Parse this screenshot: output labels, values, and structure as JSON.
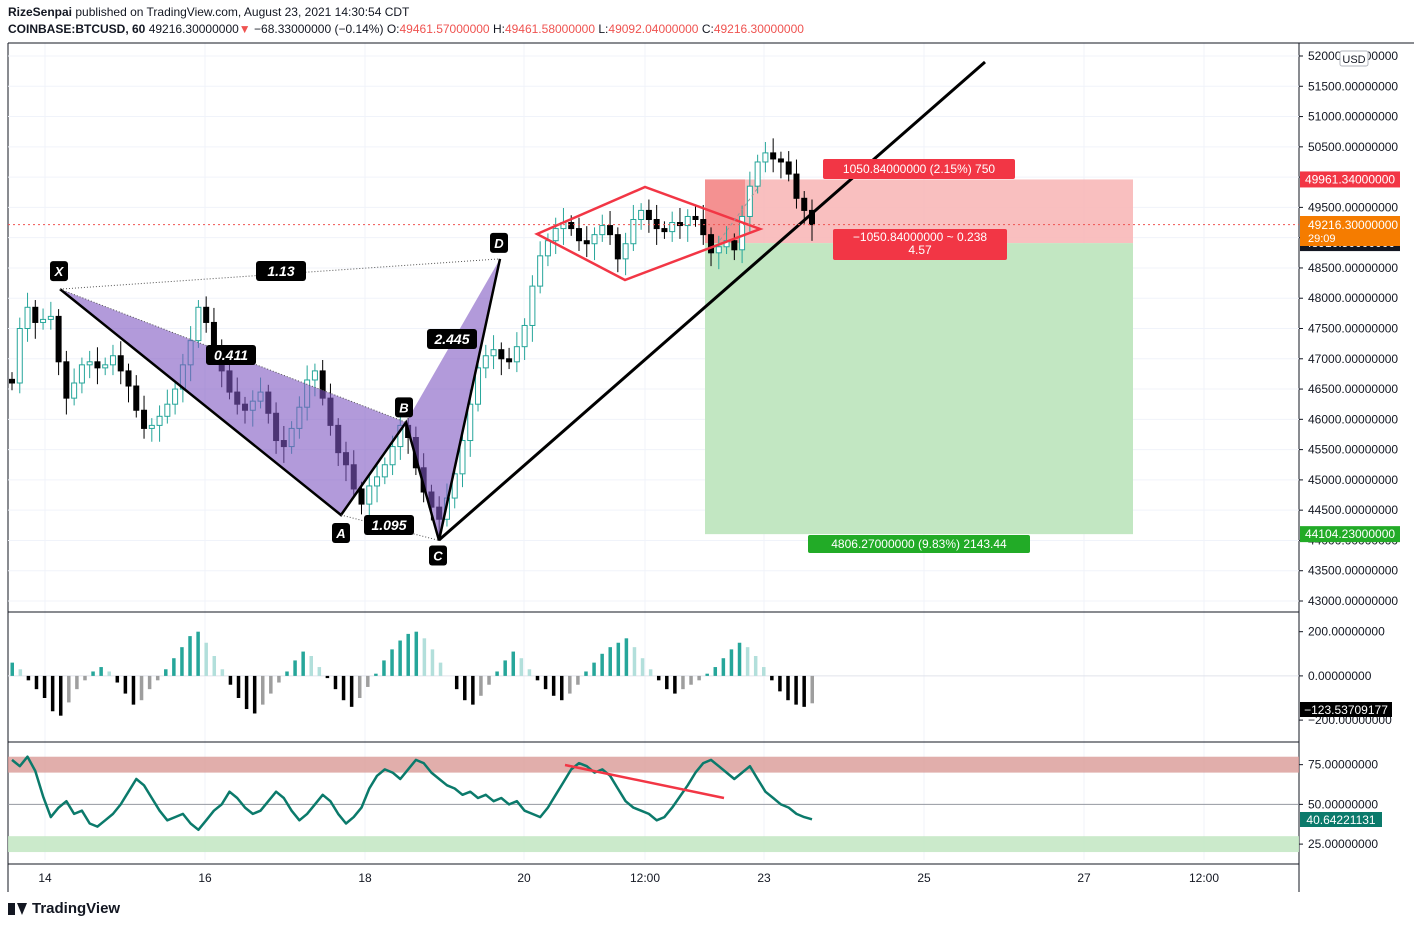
{
  "header": {
    "author": "RizeSenpai",
    "published_text": "published on TradingView.com, August 23, 2021 14:30:54 CDT",
    "symbol": "COINBASE:BTCUSD, 60",
    "last": "49216.30000000",
    "change": "−68.33000000 (−0.14%)",
    "o_label": "O:",
    "o_value": "49461.57000000",
    "h_label": "H:",
    "h_value": "49461.58000000",
    "l_label": "L:",
    "l_value": "49092.04000000",
    "c_label": "C:",
    "c_value": "49216.30000000"
  },
  "footer": {
    "brand": "TradingView"
  },
  "colors": {
    "up": "#26a69a",
    "down": "#000000",
    "harmonic": "#7e57c2",
    "diamond": "#f23645",
    "trend": "#000000",
    "rsi": "#0b7a6b",
    "stop": "#ef5350",
    "target": "#26a69a"
  },
  "chart_data": [
    {
      "type": "candlestick",
      "currency_label": "USD",
      "x_tick_labels": [
        "14",
        "16",
        "18",
        "20",
        "12:00",
        "23",
        "25",
        "27",
        "12:00"
      ],
      "y_tick_labels": [
        "43000.00000000",
        "43500.00000000",
        "44000.00000000",
        "44500.00000000",
        "45000.00000000",
        "45500.00000000",
        "46000.00000000",
        "46500.00000000",
        "47000.00000000",
        "47500.00000000",
        "48000.00000000",
        "48500.00000000",
        "49000.00000000",
        "49500.00000000",
        "50000.00000000",
        "50500.00000000",
        "51000.00000000",
        "51500.00000000",
        "52000.00000000"
      ],
      "ylim": [
        42800,
        52100
      ],
      "close_series_approx": [
        46600,
        47500,
        47850,
        47600,
        47650,
        47700,
        46950,
        46350,
        46600,
        46900,
        46950,
        46850,
        46900,
        47050,
        46800,
        46550,
        46150,
        45850,
        45900,
        46050,
        46250,
        46500,
        46900,
        47300,
        47850,
        47600,
        47200,
        46800,
        46450,
        46250,
        46150,
        46300,
        46450,
        46100,
        45650,
        45550,
        45850,
        46200,
        46650,
        46800,
        46350,
        45900,
        45450,
        45250,
        44850,
        44600,
        44900,
        45050,
        45250,
        45550,
        45900,
        45700,
        45200,
        44800,
        44550,
        44350,
        44700,
        45100,
        45650,
        46250,
        46850,
        47050,
        47150,
        47000,
        46950,
        47200,
        47550,
        48200,
        48700,
        48950,
        49150,
        49250,
        49150,
        48950,
        48900,
        49050,
        49200,
        49050,
        48650,
        48900,
        49300,
        49450,
        49300,
        49150,
        49100,
        49250,
        49200,
        49350,
        49300,
        49050,
        48750,
        48850,
        48950,
        48800,
        49350,
        49850,
        50250,
        50400,
        50300,
        50250,
        50050,
        49650,
        49450,
        49216
      ],
      "current_price_label": "49216.30000000",
      "countdown_label": "29:09",
      "price_labels": {
        "stop": "49961.34000000",
        "entry": "48910.50000000",
        "target": "44104.23000000"
      },
      "position": {
        "entry": 48910.5,
        "stop": 49961.34,
        "target": 44104.23,
        "stop_label": "1050.84000000 (2.15%) 750",
        "mid_label_line1": "−1050.84000000 ~ 0.238",
        "mid_label_line2": "4.57",
        "target_label": "4806.27000000 (9.83%) 2143.44"
      },
      "harmonic": {
        "points": [
          {
            "label": "X",
            "price": 48150
          },
          {
            "label": "A",
            "price": 44420
          },
          {
            "label": "B",
            "price": 45950
          },
          {
            "label": "C",
            "price": 44000
          },
          {
            "label": "D",
            "price": 48650
          }
        ],
        "ratios": [
          "1.13",
          "0.411",
          "2.445",
          "1.095"
        ]
      }
    },
    {
      "type": "bar",
      "name": "histogram",
      "y_tick_labels": [
        "200.00000000",
        "0.00000000",
        "−200.00000000"
      ],
      "ylim": [
        -290,
        280
      ],
      "last_value_label": "−123.53709177",
      "values": [
        60,
        30,
        -20,
        -60,
        -100,
        -160,
        -180,
        -120,
        -60,
        -20,
        20,
        40,
        20,
        -30,
        -80,
        -130,
        -110,
        -60,
        -20,
        30,
        80,
        130,
        180,
        200,
        150,
        90,
        30,
        -40,
        -100,
        -150,
        -170,
        -130,
        -80,
        -30,
        20,
        70,
        110,
        90,
        40,
        -10,
        -60,
        -110,
        -140,
        -100,
        -50,
        10,
        70,
        120,
        160,
        190,
        200,
        170,
        120,
        60,
        0,
        -60,
        -110,
        -130,
        -90,
        -40,
        20,
        70,
        110,
        80,
        30,
        -20,
        -60,
        -90,
        -110,
        -80,
        -40,
        20,
        60,
        100,
        130,
        150,
        170,
        130,
        80,
        30,
        -20,
        -60,
        -80,
        -60,
        -40,
        -20,
        10,
        40,
        80,
        120,
        150,
        130,
        90,
        40,
        -20,
        -70,
        -110,
        -130,
        -140,
        -124
      ]
    },
    {
      "type": "line",
      "name": "oscillator",
      "y_tick_labels": [
        "75.00000000",
        "50.00000000",
        "25.00000000"
      ],
      "ylim": [
        15,
        88
      ],
      "overbought_band": [
        70,
        80
      ],
      "oversold_band": [
        20,
        30
      ],
      "last_value_label": "40.64221131",
      "values": [
        78,
        74,
        80,
        71,
        55,
        42,
        48,
        52,
        44,
        46,
        38,
        36,
        40,
        44,
        50,
        58,
        66,
        62,
        54,
        46,
        40,
        42,
        44,
        38,
        34,
        40,
        46,
        50,
        58,
        54,
        48,
        44,
        46,
        52,
        58,
        54,
        46,
        40,
        44,
        50,
        56,
        52,
        44,
        38,
        42,
        48,
        60,
        68,
        72,
        70,
        66,
        72,
        78,
        76,
        70,
        66,
        62,
        60,
        56,
        58,
        54,
        56,
        52,
        54,
        50,
        52,
        46,
        44,
        42,
        48,
        56,
        64,
        72,
        76,
        74,
        70,
        72,
        68,
        60,
        52,
        48,
        46,
        44,
        40,
        42,
        48,
        55,
        62,
        70,
        76,
        78,
        74,
        70,
        66,
        70,
        74,
        66,
        58,
        54,
        50,
        48,
        44,
        42,
        40.6
      ]
    }
  ]
}
